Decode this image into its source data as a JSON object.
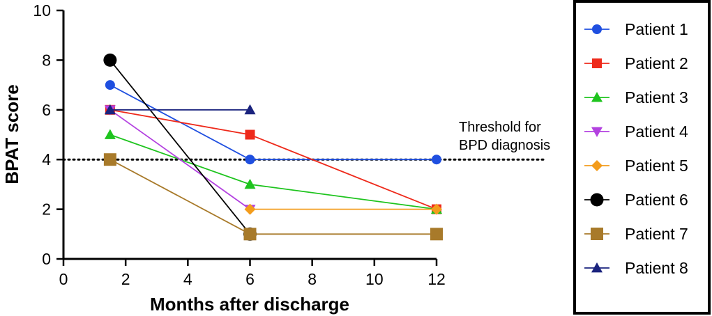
{
  "chart_data": {
    "type": "line",
    "title": "",
    "xlabel": "Months after discharge",
    "ylabel": "BPAT score",
    "xlim": [
      0,
      12
    ],
    "ylim": [
      0,
      10
    ],
    "xticks": [
      "0",
      "2",
      "4",
      "6",
      "8",
      "10",
      "12"
    ],
    "xtick_values": [
      0,
      2,
      4,
      6,
      8,
      10,
      12
    ],
    "yticks": [
      "0",
      "2",
      "4",
      "6",
      "8",
      "10"
    ],
    "ytick_values": [
      0,
      2,
      4,
      6,
      8,
      10
    ],
    "legend_position": "right",
    "threshold": {
      "value": 4,
      "label_line1": "Threshold for",
      "label_line2": "BPD diagnosis"
    },
    "series": [
      {
        "name": "Patient 1",
        "color": "#1f4fe0",
        "marker": "circle",
        "x": [
          1.5,
          6,
          12
        ],
        "values": [
          7,
          4,
          4
        ]
      },
      {
        "name": "Patient 2",
        "color": "#ee2a1b",
        "marker": "square",
        "x": [
          1.5,
          6,
          12
        ],
        "values": [
          6,
          5,
          2
        ]
      },
      {
        "name": "Patient 3",
        "color": "#1ec41e",
        "marker": "triangle-up",
        "x": [
          1.5,
          6,
          12
        ],
        "values": [
          5,
          3,
          2
        ]
      },
      {
        "name": "Patient 4",
        "color": "#b341e0",
        "marker": "triangle-down",
        "x": [
          1.5,
          6
        ],
        "values": [
          6,
          2
        ]
      },
      {
        "name": "Patient 5",
        "color": "#f39c1c",
        "marker": "diamond",
        "x": [
          6,
          12
        ],
        "values": [
          2,
          2
        ]
      },
      {
        "name": "Patient 6",
        "color": "#000000",
        "marker": "circle",
        "x": [
          1.5,
          6
        ],
        "values": [
          8,
          1
        ]
      },
      {
        "name": "Patient 7",
        "color": "#a87a2a",
        "marker": "square",
        "x": [
          1.5,
          6,
          12
        ],
        "values": [
          4,
          1,
          1
        ]
      },
      {
        "name": "Patient 8",
        "color": "#1a237e",
        "marker": "triangle-up",
        "x": [
          1.5,
          6
        ],
        "values": [
          6,
          6
        ]
      }
    ]
  }
}
